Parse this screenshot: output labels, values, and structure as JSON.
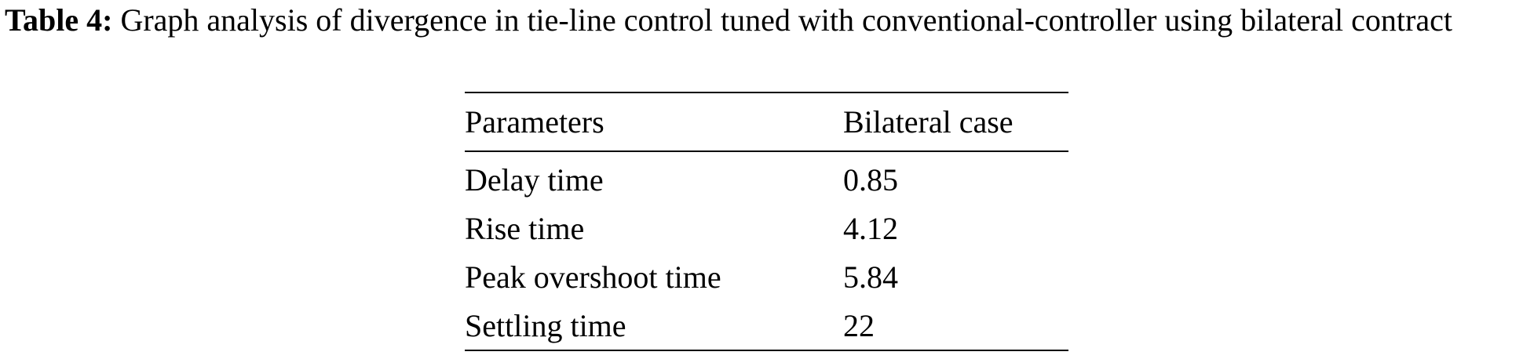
{
  "caption": {
    "label": "Table 4:",
    "text": "Graph analysis of divergence in tie-line control tuned with conventional-controller using bilateral contract"
  },
  "table": {
    "header": [
      "Parameters",
      "Bilateral case"
    ],
    "rows": [
      [
        "Delay time",
        "0.85"
      ],
      [
        "Rise time",
        "4.12"
      ],
      [
        "Peak overshoot time",
        "5.84"
      ],
      [
        "Settling time",
        "22"
      ]
    ]
  }
}
